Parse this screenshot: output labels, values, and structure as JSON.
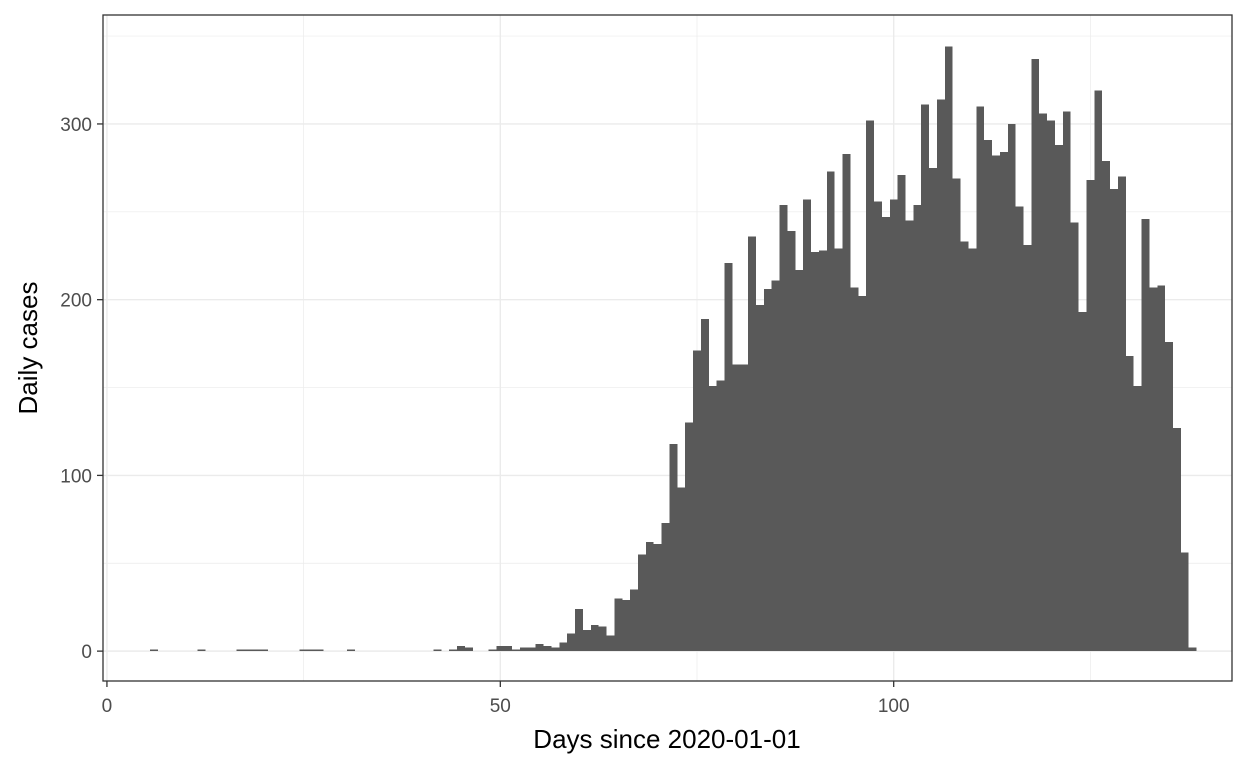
{
  "chart_data": {
    "type": "bar",
    "title": "",
    "xlabel": "Days since 2020-01-01",
    "ylabel": "Daily cases",
    "x_ticks": [
      0,
      50,
      100
    ],
    "y_ticks": [
      0,
      100,
      200,
      300
    ],
    "xlim": [
      -0.5,
      143
    ],
    "ylim": [
      -17,
      362
    ],
    "grid": true,
    "legend": "none",
    "colors": {
      "bar": "#595959",
      "grid": "#ebebeb",
      "panel_border": "#333333",
      "tick_text": "#4d4d4d"
    },
    "x": [
      6,
      12,
      17,
      18,
      19,
      20,
      25,
      26,
      27,
      31,
      42,
      44,
      45,
      46,
      49,
      50,
      51,
      52,
      53,
      54,
      55,
      56,
      57,
      58,
      59,
      60,
      61,
      62,
      63,
      64,
      65,
      66,
      67,
      68,
      69,
      70,
      71,
      72,
      73,
      74,
      75,
      76,
      77,
      78,
      79,
      80,
      81,
      82,
      83,
      84,
      85,
      86,
      87,
      88,
      89,
      90,
      91,
      92,
      93,
      94,
      95,
      96,
      97,
      98,
      99,
      100,
      101,
      102,
      103,
      104,
      105,
      106,
      107,
      108,
      109,
      110,
      111,
      112,
      113,
      114,
      115,
      116,
      117,
      118,
      119,
      120,
      121,
      122,
      123,
      124,
      125,
      126,
      127,
      128,
      129,
      130,
      131,
      132,
      133,
      134,
      135,
      136,
      137,
      138
    ],
    "values": [
      1,
      1,
      1,
      1,
      1,
      1,
      1,
      1,
      1,
      1,
      1,
      1,
      3,
      2,
      1,
      3,
      3,
      1,
      2,
      2,
      4,
      3,
      2,
      5,
      10,
      24,
      12,
      15,
      14,
      9,
      30,
      29,
      35,
      55,
      62,
      61,
      73,
      118,
      93,
      130,
      171,
      189,
      151,
      154,
      221,
      163,
      163,
      236,
      197,
      206,
      211,
      254,
      239,
      217,
      257,
      227,
      228,
      273,
      229,
      283,
      207,
      202,
      302,
      256,
      247,
      257,
      271,
      245,
      254,
      311,
      275,
      314,
      344,
      269,
      233,
      229,
      310,
      291,
      282,
      284,
      300,
      253,
      231,
      337,
      306,
      302,
      288,
      307,
      244,
      193,
      268,
      319,
      279,
      263,
      270,
      168,
      151,
      246,
      207,
      208,
      176,
      127,
      56,
      2
    ]
  }
}
